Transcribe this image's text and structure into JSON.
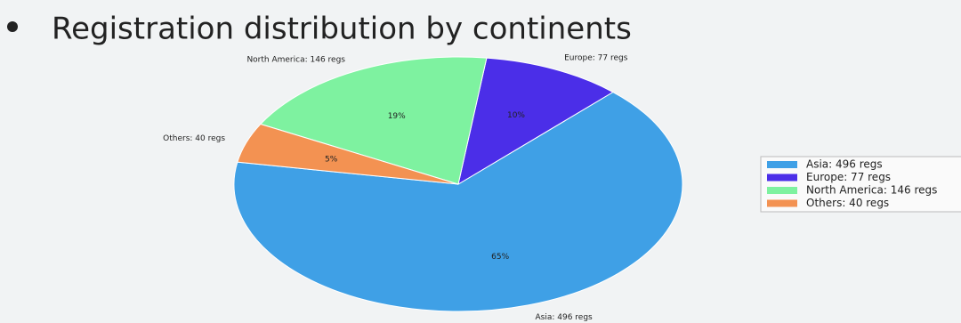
{
  "chart_data": {
    "type": "pie",
    "title": "Registration distribution by continents",
    "categories": [
      "Asia: 496 regs",
      "Europe: 77 regs",
      "North America: 146 regs",
      "Others: 40 regs"
    ],
    "values": [
      65,
      10,
      19,
      5
    ],
    "value_labels": [
      "65%",
      "10%",
      "19%",
      "5%"
    ],
    "colors": [
      "#3fa0e6",
      "#4b2ee8",
      "#7ef2a0",
      "#f39252"
    ],
    "legend": "right"
  }
}
